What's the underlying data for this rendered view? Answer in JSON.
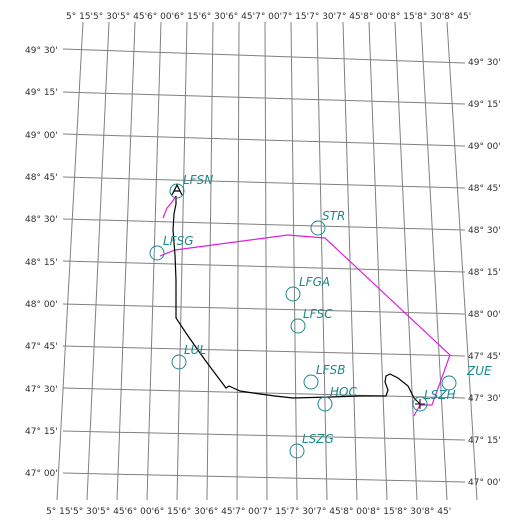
{
  "map": {
    "lat_ticks": [
      {
        "label": "49° 30'"
      },
      {
        "label": "49° 15'"
      },
      {
        "label": "49° 00'"
      },
      {
        "label": "48° 45'"
      },
      {
        "label": "48° 30'"
      },
      {
        "label": "48° 15'"
      },
      {
        "label": "48° 00'"
      },
      {
        "label": "47° 45'"
      },
      {
        "label": "47° 30'"
      },
      {
        "label": "47° 15'"
      },
      {
        "label": "47° 00'"
      }
    ],
    "lon_ticks": [
      "5° 15'",
      "5° 30'",
      "5° 45'",
      "6° 00'",
      "6° 15'",
      "6° 30'",
      "6° 45'",
      "7° 00'",
      "7° 15'",
      "7° 30'",
      "7° 45'",
      "8° 00'",
      "8° 15'",
      "8° 30'",
      "8° 45'"
    ],
    "lon_top_text": "5° 15'5° 30'5° 45'6° 00'6° 15'6° 30'6° 45'7° 00'7° 15'7° 30'7° 45'8° 00'8° 15'8° 30'8° 45'",
    "lon_bottom_text": "5° 15'5° 30'5° 45'6° 00'6° 15'6° 30'6° 45'7° 00'7° 15'7° 30'7° 45'8° 00'8° 15'8° 30'8° 45'",
    "waypoints": [
      {
        "id": "LFSN",
        "label": "LFSN"
      },
      {
        "id": "STR",
        "label": "STR"
      },
      {
        "id": "LFSG",
        "label": "LFSG"
      },
      {
        "id": "LFGA",
        "label": "LFGA"
      },
      {
        "id": "LFSC",
        "label": "LFSC"
      },
      {
        "id": "LUL",
        "label": "LUL"
      },
      {
        "id": "ZUE",
        "label": "ZUE"
      },
      {
        "id": "LFSB",
        "label": "LFSB"
      },
      {
        "id": "LSZH",
        "label": "LSZH"
      },
      {
        "id": "HOC",
        "label": "HOC"
      },
      {
        "id": "LSZG",
        "label": "LSZG"
      }
    ],
    "colors": {
      "grid": "#808080",
      "waypoint": "#1a8a8a",
      "planned_route": "#e020e0",
      "flown_track": "#000000"
    }
  }
}
